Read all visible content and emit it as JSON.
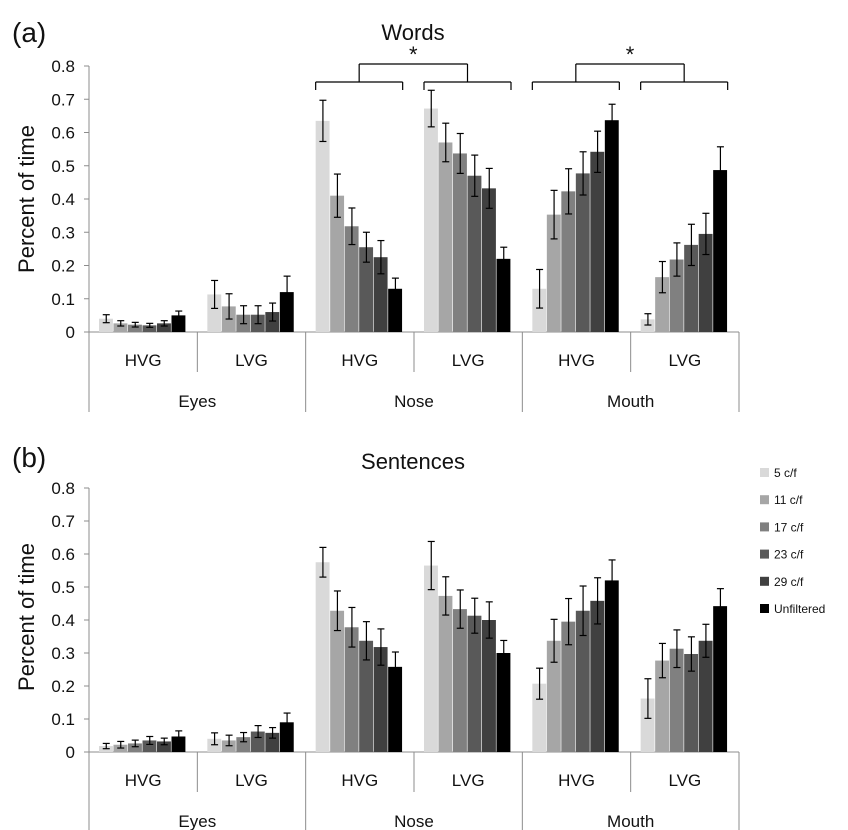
{
  "panels": [
    {
      "label": "(a)",
      "chart_data": {
        "type": "bar",
        "title": "Words",
        "ylabel": "Percent of time",
        "ylim": [
          0,
          0.8
        ],
        "yticks": [
          "0",
          "0.1",
          "0.2",
          "0.3",
          "0.4",
          "0.5",
          "0.6",
          "0.7",
          "0.8"
        ],
        "regions": [
          "Eyes",
          "Nose",
          "Mouth"
        ],
        "groups": [
          "HVG",
          "LVG"
        ],
        "series_order": [
          "5 c/f",
          "11 c/f",
          "17 c/f",
          "23 c/f",
          "29 c/f",
          "Unfiltered"
        ],
        "bars": [
          {
            "region": "Eyes",
            "group": "HVG",
            "values": [
              0.04,
              0.026,
              0.022,
              0.02,
              0.026,
              0.05
            ],
            "errors": [
              0.012,
              0.008,
              0.007,
              0.006,
              0.008,
              0.013
            ]
          },
          {
            "region": "Eyes",
            "group": "LVG",
            "values": [
              0.113,
              0.077,
              0.052,
              0.052,
              0.06,
              0.12
            ],
            "errors": [
              0.042,
              0.038,
              0.027,
              0.027,
              0.027,
              0.048
            ]
          },
          {
            "region": "Nose",
            "group": "HVG",
            "values": [
              0.635,
              0.41,
              0.318,
              0.255,
              0.225,
              0.13
            ],
            "errors": [
              0.062,
              0.065,
              0.055,
              0.045,
              0.05,
              0.032
            ]
          },
          {
            "region": "Nose",
            "group": "LVG",
            "values": [
              0.672,
              0.57,
              0.537,
              0.47,
              0.432,
              0.22
            ],
            "errors": [
              0.055,
              0.058,
              0.06,
              0.062,
              0.06,
              0.035
            ]
          },
          {
            "region": "Mouth",
            "group": "HVG",
            "values": [
              0.13,
              0.353,
              0.423,
              0.477,
              0.542,
              0.637
            ],
            "errors": [
              0.058,
              0.073,
              0.068,
              0.065,
              0.062,
              0.048
            ]
          },
          {
            "region": "Mouth",
            "group": "LVG",
            "values": [
              0.038,
              0.165,
              0.218,
              0.262,
              0.295,
              0.487
            ],
            "errors": [
              0.017,
              0.047,
              0.05,
              0.062,
              0.062,
              0.07
            ]
          }
        ],
        "significance": [
          {
            "text": "*",
            "region": "Nose"
          },
          {
            "text": "*",
            "region": "Mouth"
          }
        ]
      }
    },
    {
      "label": "(b)",
      "chart_data": {
        "type": "bar",
        "title": "Sentences",
        "ylabel": "Percent of time",
        "ylim": [
          0,
          0.8
        ],
        "yticks": [
          "0",
          "0.1",
          "0.2",
          "0.3",
          "0.4",
          "0.5",
          "0.6",
          "0.7",
          "0.8"
        ],
        "regions": [
          "Eyes",
          "Nose",
          "Mouth"
        ],
        "groups": [
          "HVG",
          "LVG"
        ],
        "series_order": [
          "5 c/f",
          "11 c/f",
          "17 c/f",
          "23 c/f",
          "29 c/f",
          "Unfiltered"
        ],
        "bars": [
          {
            "region": "Eyes",
            "group": "HVG",
            "values": [
              0.018,
              0.022,
              0.026,
              0.035,
              0.032,
              0.047
            ],
            "errors": [
              0.008,
              0.01,
              0.01,
              0.012,
              0.01,
              0.017
            ]
          },
          {
            "region": "Eyes",
            "group": "LVG",
            "values": [
              0.04,
              0.035,
              0.045,
              0.062,
              0.058,
              0.09
            ],
            "errors": [
              0.018,
              0.016,
              0.014,
              0.018,
              0.016,
              0.028
            ]
          },
          {
            "region": "Nose",
            "group": "HVG",
            "values": [
              0.575,
              0.428,
              0.378,
              0.337,
              0.318,
              0.258
            ],
            "errors": [
              0.045,
              0.06,
              0.06,
              0.058,
              0.055,
              0.045
            ]
          },
          {
            "region": "Nose",
            "group": "LVG",
            "values": [
              0.565,
              0.473,
              0.433,
              0.413,
              0.4,
              0.3
            ],
            "errors": [
              0.073,
              0.058,
              0.058,
              0.053,
              0.055,
              0.038
            ]
          },
          {
            "region": "Mouth",
            "group": "HVG",
            "values": [
              0.207,
              0.337,
              0.395,
              0.428,
              0.458,
              0.52
            ],
            "errors": [
              0.047,
              0.065,
              0.07,
              0.075,
              0.07,
              0.062
            ]
          },
          {
            "region": "Mouth",
            "group": "LVG",
            "values": [
              0.162,
              0.277,
              0.313,
              0.297,
              0.337,
              0.442
            ],
            "errors": [
              0.06,
              0.052,
              0.057,
              0.052,
              0.05,
              0.053
            ]
          }
        ]
      }
    }
  ],
  "legend": {
    "placement": "right",
    "items": [
      {
        "label": "5 c/f",
        "color": "#d9d9d9"
      },
      {
        "label": "11 c/f",
        "color": "#a6a6a6"
      },
      {
        "label": "17 c/f",
        "color": "#808080"
      },
      {
        "label": "23 c/f",
        "color": "#595959"
      },
      {
        "label": "29 c/f",
        "color": "#404040"
      },
      {
        "label": "Unfiltered",
        "color": "#000000"
      }
    ]
  }
}
